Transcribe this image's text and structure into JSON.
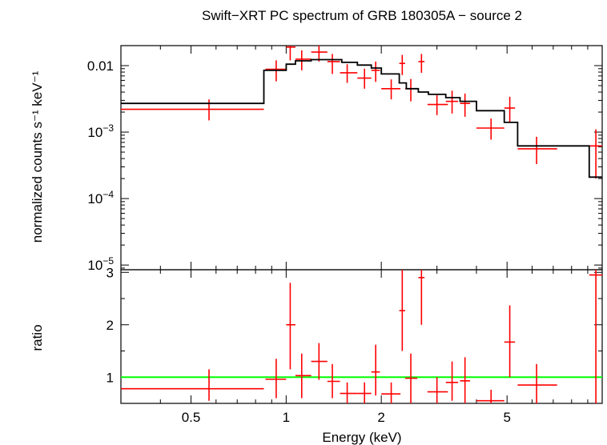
{
  "chart_data": {
    "type": "scatter",
    "title": "Swift−XRT PC spectrum of GRB 180305A − source 2",
    "xlabel": "Energy (keV)",
    "xscale": "log",
    "xlim": [
      0.3,
      10
    ],
    "x_ticks": [
      {
        "value": 0.5,
        "label": "0.5"
      },
      {
        "value": 1,
        "label": "1"
      },
      {
        "value": 2,
        "label": "2"
      },
      {
        "value": 5,
        "label": "5"
      }
    ],
    "colors": {
      "data": "#ff0000",
      "model": "#000000",
      "unity": "#00ff00"
    },
    "panels": [
      {
        "name": "spectrum",
        "ylabel": "normalized counts s⁻¹ keV⁻¹",
        "yscale": "log",
        "ylim": [
          8.5e-06,
          0.02
        ],
        "y_ticks": [
          {
            "value": 0.01,
            "base": "0.01",
            "exp": ""
          },
          {
            "value": 0.001,
            "base": "10",
            "exp": "−3"
          },
          {
            "value": 0.0001,
            "base": "10",
            "exp": "−4"
          },
          {
            "value": 1e-05,
            "base": "10",
            "exp": "−5"
          }
        ],
        "series": [
          {
            "kind": "data",
            "points": [
              {
                "x": 0.57,
                "xlo": 0.3,
                "xhi": 0.85,
                "y": 0.0022,
                "ylo": 0.0015,
                "yhi": 0.0031
              },
              {
                "x": 0.93,
                "xlo": 0.86,
                "xhi": 1.0,
                "y": 0.0088,
                "ylo": 0.0058,
                "yhi": 0.012
              },
              {
                "x": 1.03,
                "xlo": 1.0,
                "xhi": 1.07,
                "y": 0.019,
                "ylo": 0.012,
                "yhi": 0.027
              },
              {
                "x": 1.12,
                "xlo": 1.07,
                "xhi": 1.2,
                "y": 0.0125,
                "ylo": 0.0085,
                "yhi": 0.017
              },
              {
                "x": 1.27,
                "xlo": 1.2,
                "xhi": 1.35,
                "y": 0.016,
                "ylo": 0.0115,
                "yhi": 0.021
              },
              {
                "x": 1.4,
                "xlo": 1.35,
                "xhi": 1.48,
                "y": 0.0115,
                "ylo": 0.0075,
                "yhi": 0.015
              },
              {
                "x": 1.56,
                "xlo": 1.48,
                "xhi": 1.68,
                "y": 0.0078,
                "ylo": 0.0055,
                "yhi": 0.0105
              },
              {
                "x": 1.77,
                "xlo": 1.68,
                "xhi": 1.86,
                "y": 0.0065,
                "ylo": 0.0045,
                "yhi": 0.009
              },
              {
                "x": 1.92,
                "xlo": 1.86,
                "xhi": 1.98,
                "y": 0.0085,
                "ylo": 0.0057,
                "yhi": 0.0115
              },
              {
                "x": 2.15,
                "xlo": 2.0,
                "xhi": 2.3,
                "y": 0.0045,
                "ylo": 0.0031,
                "yhi": 0.0062
              },
              {
                "x": 2.33,
                "xlo": 2.28,
                "xhi": 2.38,
                "y": 0.0108,
                "ylo": 0.0072,
                "yhi": 0.0145
              },
              {
                "x": 2.48,
                "xlo": 2.38,
                "xhi": 2.6,
                "y": 0.0045,
                "ylo": 0.0029,
                "yhi": 0.0063
              },
              {
                "x": 2.68,
                "xlo": 2.62,
                "xhi": 2.74,
                "y": 0.0115,
                "ylo": 0.0078,
                "yhi": 0.015
              },
              {
                "x": 3.0,
                "xlo": 2.8,
                "xhi": 3.25,
                "y": 0.0026,
                "ylo": 0.0018,
                "yhi": 0.0036
              },
              {
                "x": 3.35,
                "xlo": 3.2,
                "xhi": 3.5,
                "y": 0.0029,
                "ylo": 0.0019,
                "yhi": 0.0042
              },
              {
                "x": 3.68,
                "xlo": 3.55,
                "xhi": 3.82,
                "y": 0.0027,
                "ylo": 0.0017,
                "yhi": 0.0038
              },
              {
                "x": 4.45,
                "xlo": 4.0,
                "xhi": 4.9,
                "y": 0.00115,
                "ylo": 0.00077,
                "yhi": 0.0016
              },
              {
                "x": 5.1,
                "xlo": 4.9,
                "xhi": 5.3,
                "y": 0.0023,
                "ylo": 0.0014,
                "yhi": 0.0034
              },
              {
                "x": 6.2,
                "xlo": 5.4,
                "xhi": 7.2,
                "y": 0.00056,
                "ylo": 0.00033,
                "yhi": 0.00085
              },
              {
                "x": 9.55,
                "xlo": 9.1,
                "xhi": 10.0,
                "y": 0.00062,
                "ylo": 0.0002,
                "yhi": 0.0011
              }
            ]
          },
          {
            "kind": "model",
            "steps": [
              {
                "xlo": 0.3,
                "xhi": 0.85,
                "y": 0.0027
              },
              {
                "xlo": 0.85,
                "xhi": 1.0,
                "y": 0.0085
              },
              {
                "xlo": 1.0,
                "xhi": 1.07,
                "y": 0.0105
              },
              {
                "xlo": 1.07,
                "xhi": 1.2,
                "y": 0.0118
              },
              {
                "xlo": 1.2,
                "xhi": 1.5,
                "y": 0.0123
              },
              {
                "xlo": 1.5,
                "xhi": 1.68,
                "y": 0.0112
              },
              {
                "xlo": 1.68,
                "xhi": 1.86,
                "y": 0.0102
              },
              {
                "xlo": 1.86,
                "xhi": 2.0,
                "y": 0.0092
              },
              {
                "xlo": 2.0,
                "xhi": 2.28,
                "y": 0.0075
              },
              {
                "xlo": 2.28,
                "xhi": 2.4,
                "y": 0.0055
              },
              {
                "xlo": 2.4,
                "xhi": 2.62,
                "y": 0.0045
              },
              {
                "xlo": 2.62,
                "xhi": 2.82,
                "y": 0.004
              },
              {
                "xlo": 2.82,
                "xhi": 3.2,
                "y": 0.0037
              },
              {
                "xlo": 3.2,
                "xhi": 3.55,
                "y": 0.0033
              },
              {
                "xlo": 3.55,
                "xhi": 4.0,
                "y": 0.0029
              },
              {
                "xlo": 4.0,
                "xhi": 4.9,
                "y": 0.0021
              },
              {
                "xlo": 4.9,
                "xhi": 5.4,
                "y": 0.0014
              },
              {
                "xlo": 5.4,
                "xhi": 9.1,
                "y": 0.00062
              },
              {
                "xlo": 9.1,
                "xhi": 10.0,
                "y": 0.00021
              }
            ]
          }
        ]
      },
      {
        "name": "ratio",
        "ylabel": "ratio",
        "yscale": "linear",
        "ylim": [
          0.5,
          3.05
        ],
        "y_ticks": [
          {
            "value": 1,
            "label": "1"
          },
          {
            "value": 2,
            "label": "2"
          },
          {
            "value": 3,
            "label": "3"
          }
        ],
        "unity_line": 1,
        "series": [
          {
            "kind": "data",
            "points": [
              {
                "x": 0.57,
                "xlo": 0.3,
                "xhi": 0.85,
                "y": 0.78,
                "ylo": 0.55,
                "yhi": 1.15
              },
              {
                "x": 0.93,
                "xlo": 0.86,
                "xhi": 1.0,
                "y": 0.96,
                "ylo": 0.6,
                "yhi": 1.35
              },
              {
                "x": 1.03,
                "xlo": 1.0,
                "xhi": 1.07,
                "y": 2.0,
                "ylo": 1.15,
                "yhi": 2.8
              },
              {
                "x": 1.12,
                "xlo": 1.07,
                "xhi": 1.2,
                "y": 1.03,
                "ylo": 0.6,
                "yhi": 1.45
              },
              {
                "x": 1.27,
                "xlo": 1.2,
                "xhi": 1.35,
                "y": 1.3,
                "ylo": 0.95,
                "yhi": 1.65
              },
              {
                "x": 1.4,
                "xlo": 1.35,
                "xhi": 1.48,
                "y": 0.92,
                "ylo": 0.6,
                "yhi": 1.25
              },
              {
                "x": 1.56,
                "xlo": 1.48,
                "xhi": 1.68,
                "y": 0.69,
                "ylo": 0.5,
                "yhi": 0.9
              },
              {
                "x": 1.77,
                "xlo": 1.68,
                "xhi": 1.86,
                "y": 0.69,
                "ylo": 0.5,
                "yhi": 0.9
              },
              {
                "x": 1.92,
                "xlo": 1.86,
                "xhi": 1.98,
                "y": 1.1,
                "ylo": 0.65,
                "yhi": 1.62
              },
              {
                "x": 2.15,
                "xlo": 2.0,
                "xhi": 2.3,
                "y": 0.68,
                "ylo": 0.5,
                "yhi": 0.9
              },
              {
                "x": 2.33,
                "xlo": 2.28,
                "xhi": 2.38,
                "y": 2.27,
                "ylo": 1.5,
                "yhi": 3.05
              },
              {
                "x": 2.48,
                "xlo": 2.38,
                "xhi": 2.6,
                "y": 0.98,
                "ylo": 0.5,
                "yhi": 1.45
              },
              {
                "x": 2.68,
                "xlo": 2.62,
                "xhi": 2.74,
                "y": 2.9,
                "ylo": 2.0,
                "yhi": 3.05
              },
              {
                "x": 3.0,
                "xlo": 2.8,
                "xhi": 3.25,
                "y": 0.72,
                "ylo": 0.5,
                "yhi": 1.0
              },
              {
                "x": 3.35,
                "xlo": 3.2,
                "xhi": 3.5,
                "y": 0.9,
                "ylo": 0.55,
                "yhi": 1.3
              },
              {
                "x": 3.68,
                "xlo": 3.55,
                "xhi": 3.82,
                "y": 0.93,
                "ylo": 0.5,
                "yhi": 1.38
              },
              {
                "x": 4.45,
                "xlo": 4.0,
                "xhi": 4.9,
                "y": 0.55,
                "ylo": 0.5,
                "yhi": 0.76
              },
              {
                "x": 5.1,
                "xlo": 4.9,
                "xhi": 5.3,
                "y": 1.67,
                "ylo": 1.0,
                "yhi": 2.37
              },
              {
                "x": 6.2,
                "xlo": 5.4,
                "xhi": 7.2,
                "y": 0.85,
                "ylo": 0.5,
                "yhi": 1.25
              },
              {
                "x": 9.55,
                "xlo": 9.1,
                "xhi": 10.0,
                "y": 2.95,
                "ylo": 0.5,
                "yhi": 3.05
              }
            ]
          }
        ]
      }
    ]
  }
}
